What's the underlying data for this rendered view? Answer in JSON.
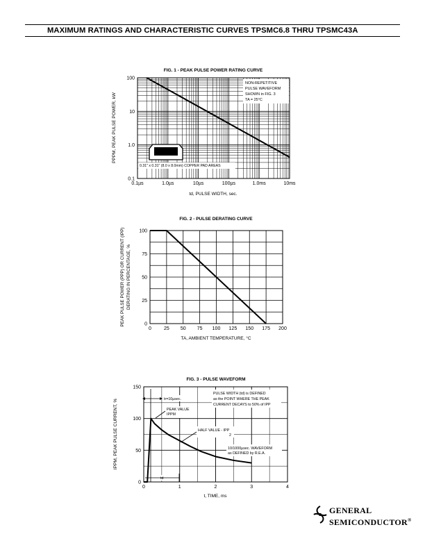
{
  "page": {
    "title": "MAXIMUM RATINGS AND CHARACTERISTIC CURVES TPSMC6.8 THRU TPSMC43A"
  },
  "logo": {
    "line1": "GENERAL",
    "line2": "SEMICONDUCTOR",
    "mark": "®",
    "icon": "gs-logo-icon"
  },
  "chart_data": [
    {
      "type": "line",
      "title": "FIG. 1 - PEAK PULSE POWER RATING CURVE",
      "xlabel": "td, PULSE WIDTH, sec.",
      "ylabel": "PPPM, PEAK PULSE POWER, kW",
      "x_scale": "log",
      "y_scale": "log",
      "x_ticks": [
        "0.1µs",
        "1.0µs",
        "10µs",
        "100µs",
        "1.0ms",
        "10ms"
      ],
      "y_ticks": [
        "0.1",
        "1.0",
        "10",
        "100"
      ],
      "xlim": [
        "0.1µs",
        "10ms"
      ],
      "ylim": [
        0.1,
        100
      ],
      "grid": true,
      "x_unit_seconds": [
        1e-07,
        1e-06,
        1e-05,
        0.0001,
        0.001,
        0.01
      ],
      "series": [
        {
          "x_seconds": [
            2e-07,
            0.01
          ],
          "y_kw": [
            100,
            0.43
          ]
        }
      ],
      "annotations": [
        "NON-REPETITIVE",
        "PULSE WAVEFORM",
        "SHOWN in FIG. 3",
        "TA = 25°C"
      ],
      "pad_label": "0.31\" x 0.31\" (8.0 x 8.0mm) COPPER PAD AREAS"
    },
    {
      "type": "line",
      "title": "FIG. 2 - PULSE DERATING CURVE",
      "xlabel": "TA, AMBIENT TEMPERATURE, °C",
      "ylabel_line1": "PEAK PULSE POWER (PPP) OR CURRENT (IPP)",
      "ylabel_line2": "DERATING IN PERCENTAGE, %",
      "x_ticks": [
        "0",
        "25",
        "50",
        "75",
        "100",
        "125",
        "150",
        "175",
        "200"
      ],
      "y_ticks": [
        "0",
        "25",
        "50",
        "75",
        "100"
      ],
      "xlim": [
        0,
        200
      ],
      "ylim": [
        0,
        100
      ],
      "grid": true,
      "series": [
        {
          "x": [
            0,
            25,
            175
          ],
          "y": [
            100,
            100,
            0
          ]
        }
      ]
    },
    {
      "type": "line",
      "title": "FIG. 3 - PULSE WAVEFORM",
      "xlabel": "t, TIME, ms",
      "ylabel": "IPPM, PEAK PULSE CURRENT, %",
      "x_ticks": [
        "0",
        "1",
        "2",
        "3",
        "4"
      ],
      "y_ticks": [
        "0",
        "50",
        "100",
        "150"
      ],
      "xlim": [
        0,
        4
      ],
      "ylim": [
        0,
        150
      ],
      "grid": true,
      "series": [
        {
          "x": [
            0,
            0.1,
            0.2,
            0.3,
            0.5,
            0.7,
            1.0,
            1.3,
            1.6,
            2.0,
            2.5,
            3.0
          ],
          "y": [
            0,
            0,
            100,
            92,
            82,
            74,
            65,
            56,
            48,
            40,
            34,
            30
          ]
        }
      ],
      "annotations": {
        "tr": "tr=10µsec.",
        "pulse_width": [
          "PULSE WIDTH (td) is DEFINED",
          "as the POINT WHERE THE PEAK",
          "CURRENT DECAYS to 50% of IPP"
        ],
        "peak_value": [
          "PEAK VALUE",
          "IPPM"
        ],
        "half_value": [
          "HALF VALUE - IPP",
          "2"
        ],
        "waveform": [
          "10/1000µsec. WAVEFORM",
          "as DEFINED by R.E.A."
        ],
        "td": "td"
      }
    }
  ]
}
